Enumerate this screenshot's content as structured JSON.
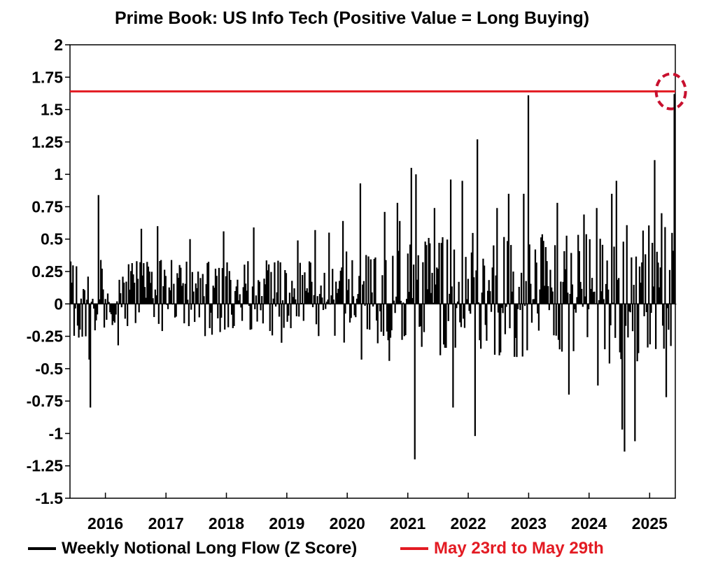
{
  "chart_data": {
    "type": "bar",
    "title": "Prime Book: US Info Tech (Positive Value = Long Buying)",
    "xlabel": "",
    "ylabel": "",
    "ylim": [
      -1.5,
      2
    ],
    "yticks": [
      2,
      1.75,
      1.5,
      1.25,
      1,
      0.75,
      0.5,
      0.25,
      0,
      -0.25,
      -0.5,
      -0.75,
      -1,
      -1.25,
      -1.5
    ],
    "ytick_labels": [
      "2",
      "1.75",
      "1.5",
      "1.25",
      "1",
      "0.75",
      "0.5",
      "0.25",
      "0",
      "-0.25",
      "-0.5",
      "-0.75",
      "-1",
      "-1.25",
      "-1.5"
    ],
    "xlim": [
      "2015-06-01",
      "2025-06-05"
    ],
    "xticks": [
      "2016-01-01",
      "2017-01-01",
      "2018-01-01",
      "2019-01-01",
      "2020-01-01",
      "2021-01-01",
      "2022-01-01",
      "2023-01-01",
      "2024-01-01",
      "2025-01-01"
    ],
    "xtick_labels": [
      "2016",
      "2017",
      "2018",
      "2019",
      "2020",
      "2021",
      "2022",
      "2023",
      "2024",
      "2025"
    ],
    "grid": false,
    "legend_position": "bottom",
    "series": [
      {
        "name": "Weekly Notional Long Flow (Z Score)",
        "color": "#000000",
        "note_frequency": "weekly",
        "points": [
          [
            "2015-07-20",
            -0.26
          ],
          [
            "2015-09-21",
            -0.43
          ],
          [
            "2015-09-28",
            -0.8
          ],
          [
            "2015-11-16",
            0.84
          ],
          [
            "2016-03-14",
            -0.32
          ],
          [
            "2016-08-01",
            0.58
          ],
          [
            "2016-11-07",
            0.6
          ],
          [
            "2017-03-20",
            0.3
          ],
          [
            "2017-05-22",
            0.5
          ],
          [
            "2017-12-11",
            0.56
          ],
          [
            "2018-06-11",
            0.59
          ],
          [
            "2018-11-26",
            -0.3
          ],
          [
            "2019-03-04",
            0.49
          ],
          [
            "2019-06-17",
            0.57
          ],
          [
            "2019-09-09",
            0.55
          ],
          [
            "2019-12-02",
            0.64
          ],
          [
            "2020-03-16",
            0.93
          ],
          [
            "2020-03-23",
            -0.43
          ],
          [
            "2020-08-10",
            0.71
          ],
          [
            "2020-09-07",
            -0.44
          ],
          [
            "2020-10-26",
            0.78
          ],
          [
            "2020-11-09",
            0.64
          ],
          [
            "2021-01-18",
            1.05
          ],
          [
            "2021-02-08",
            -1.2
          ],
          [
            "2021-02-15",
            1.0
          ],
          [
            "2021-06-07",
            0.74
          ],
          [
            "2021-09-13",
            0.96
          ],
          [
            "2021-09-27",
            -0.8
          ],
          [
            "2021-11-22",
            0.95
          ],
          [
            "2022-02-07",
            -1.02
          ],
          [
            "2022-02-21",
            1.27
          ],
          [
            "2022-06-20",
            0.74
          ],
          [
            "2022-08-29",
            0.85
          ],
          [
            "2022-11-28",
            0.85
          ],
          [
            "2022-12-26",
            1.61
          ],
          [
            "2023-02-06",
            0.42
          ],
          [
            "2023-06-19",
            0.78
          ],
          [
            "2023-08-28",
            -0.7
          ],
          [
            "2023-11-27",
            0.69
          ],
          [
            "2024-02-12",
            0.74
          ],
          [
            "2024-02-19",
            -0.63
          ],
          [
            "2024-05-13",
            0.85
          ],
          [
            "2024-06-10",
            0.95
          ],
          [
            "2024-07-15",
            -0.97
          ],
          [
            "2024-07-29",
            -1.14
          ],
          [
            "2024-09-30",
            -1.06
          ],
          [
            "2025-01-27",
            1.11
          ],
          [
            "2025-03-10",
            0.7
          ],
          [
            "2025-04-07",
            -0.72
          ],
          [
            "2025-05-26",
            1.62
          ]
        ]
      },
      {
        "name": "May 23rd to May 29th",
        "color": "#e31b23",
        "value": 1.64
      }
    ]
  }
}
